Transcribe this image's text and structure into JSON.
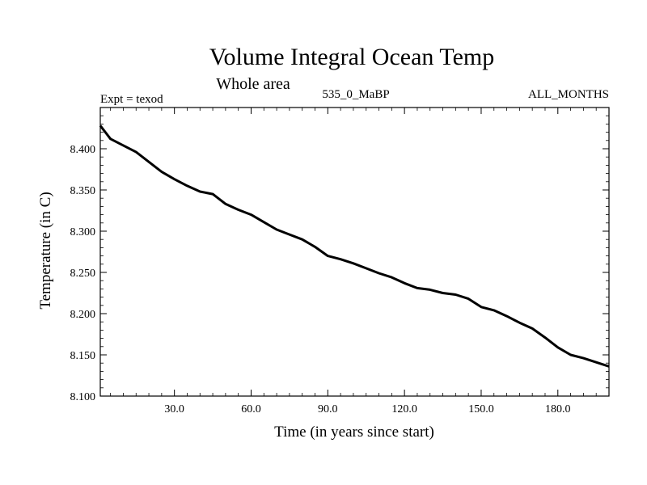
{
  "chart_data": {
    "type": "line",
    "title": "Volume Integral Ocean Temp",
    "subtitle": "Whole area",
    "expt_label": "Expt = texod",
    "run_label": "535_0_MaBP",
    "months_label": "ALL_MONTHS",
    "xlabel": "Time (in years since start)",
    "ylabel": "Temperature (in C)",
    "xlim": [
      1,
      200
    ],
    "ylim": [
      8.1,
      8.45
    ],
    "xticks": [
      30,
      60,
      90,
      120,
      150,
      180
    ],
    "xtick_labels": [
      "30.0",
      "60.0",
      "90.0",
      "120.0",
      "150.0",
      "180.0"
    ],
    "yticks": [
      8.1,
      8.15,
      8.2,
      8.25,
      8.3,
      8.35,
      8.4
    ],
    "ytick_labels": [
      "8.100",
      "8.150",
      "8.200",
      "8.250",
      "8.300",
      "8.350",
      "8.400"
    ],
    "series": [
      {
        "name": "Volume integral ocean temperature",
        "x": [
          1,
          5,
          10,
          15,
          20,
          25,
          30,
          35,
          40,
          45,
          50,
          55,
          60,
          65,
          70,
          75,
          80,
          85,
          90,
          95,
          100,
          105,
          110,
          115,
          120,
          125,
          130,
          135,
          140,
          145,
          150,
          155,
          160,
          165,
          170,
          175,
          180,
          185,
          190,
          195,
          200
        ],
        "values": [
          8.428,
          8.412,
          8.404,
          8.396,
          8.384,
          8.372,
          8.363,
          8.355,
          8.348,
          8.345,
          8.333,
          8.326,
          8.32,
          8.311,
          8.302,
          8.296,
          8.29,
          8.281,
          8.27,
          8.266,
          8.261,
          8.255,
          8.249,
          8.244,
          8.237,
          8.231,
          8.229,
          8.225,
          8.223,
          8.218,
          8.208,
          8.204,
          8.197,
          8.189,
          8.182,
          8.171,
          8.159,
          8.15,
          8.146,
          8.141,
          8.136
        ]
      }
    ]
  }
}
